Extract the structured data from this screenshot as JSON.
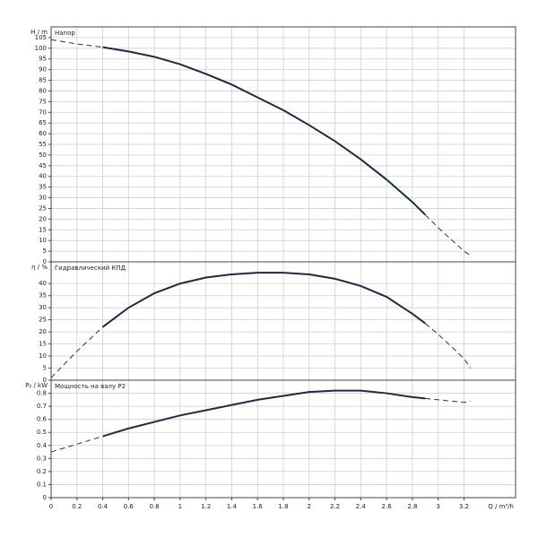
{
  "chart_data": [
    {
      "type": "line",
      "title": "Напор",
      "y_label": "H / m",
      "x": [
        0,
        0.2,
        0.4,
        0.6,
        0.8,
        1.0,
        1.2,
        1.4,
        1.6,
        1.8,
        2.0,
        2.2,
        2.4,
        2.6,
        2.8,
        2.9,
        3.0,
        3.2,
        3.25
      ],
      "series": [
        {
          "color": "#1c2b45",
          "dashed": false,
          "values": [
            null,
            null,
            100.5,
            98.5,
            96,
            92.5,
            88,
            83,
            77,
            71,
            64,
            56.5,
            48,
            38.5,
            28,
            22,
            null,
            null,
            null
          ]
        },
        {
          "color": "#333333",
          "dashed": true,
          "values": [
            104,
            102,
            100.5,
            null,
            null,
            null,
            null,
            null,
            null,
            null,
            null,
            null,
            null,
            null,
            null,
            22,
            16,
            5,
            3
          ]
        }
      ],
      "ylim": [
        0,
        110
      ],
      "yticks": [
        0,
        5,
        10,
        15,
        20,
        25,
        30,
        35,
        40,
        45,
        50,
        55,
        60,
        65,
        70,
        75,
        80,
        85,
        90,
        95,
        100,
        105
      ],
      "grid": true
    },
    {
      "type": "line",
      "title": "Гидравлический КПД",
      "y_label": "η / %",
      "x": [
        0,
        0.2,
        0.4,
        0.6,
        0.8,
        1.0,
        1.2,
        1.4,
        1.6,
        1.8,
        2.0,
        2.2,
        2.4,
        2.6,
        2.8,
        2.9,
        3.0,
        3.2,
        3.25
      ],
      "series": [
        {
          "color": "#1c2b45",
          "dashed": false,
          "values": [
            null,
            null,
            22,
            30,
            36,
            40,
            42.5,
            43.8,
            44.5,
            44.5,
            43.8,
            42,
            39,
            34.5,
            27.5,
            23.5,
            null,
            null,
            null
          ]
        },
        {
          "color": "#333333",
          "dashed": true,
          "values": [
            1,
            12,
            22,
            null,
            null,
            null,
            null,
            null,
            null,
            null,
            null,
            null,
            null,
            null,
            null,
            23.5,
            19,
            9,
            5
          ]
        }
      ],
      "ylim": [
        0,
        49
      ],
      "yticks": [
        0,
        5,
        10,
        15,
        20,
        25,
        30,
        35,
        40
      ],
      "grid": true
    },
    {
      "type": "line",
      "title": "Мощность на валу P2",
      "y_label": "P₂ / kW",
      "x_label": "Q / m³/h",
      "x": [
        0,
        0.2,
        0.4,
        0.6,
        0.8,
        1.0,
        1.2,
        1.4,
        1.6,
        1.8,
        2.0,
        2.2,
        2.4,
        2.6,
        2.8,
        2.9,
        3.0,
        3.2,
        3.25
      ],
      "series": [
        {
          "color": "#1c2b45",
          "dashed": false,
          "values": [
            null,
            null,
            0.47,
            0.53,
            0.58,
            0.63,
            0.67,
            0.71,
            0.75,
            0.78,
            0.81,
            0.82,
            0.82,
            0.8,
            0.77,
            0.76,
            null,
            null,
            null
          ]
        },
        {
          "color": "#333333",
          "dashed": true,
          "values": [
            0.35,
            0.41,
            0.47,
            null,
            null,
            null,
            null,
            null,
            null,
            null,
            null,
            null,
            null,
            null,
            null,
            0.76,
            0.75,
            0.73,
            0.74
          ]
        }
      ],
      "xlim": [
        0,
        3.6
      ],
      "xticks": [
        0,
        0.2,
        0.4,
        0.6,
        0.8,
        1,
        1.2,
        1.4,
        1.6,
        1.8,
        2,
        2.2,
        2.4,
        2.6,
        2.8,
        3,
        3.2
      ],
      "ylim": [
        0,
        0.9
      ],
      "yticks": [
        0,
        0.1,
        0.2,
        0.3,
        0.4,
        0.5,
        0.6,
        0.7,
        0.8
      ],
      "grid": true
    }
  ]
}
